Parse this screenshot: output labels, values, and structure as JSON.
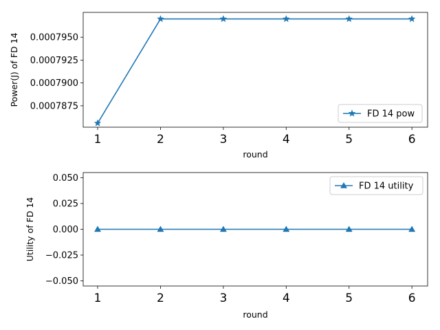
{
  "chart_data": [
    {
      "type": "line",
      "title": "",
      "xlabel": "round",
      "ylabel": "Power(J) of FD 14",
      "x": [
        1,
        2,
        3,
        4,
        5,
        6
      ],
      "xticks": [
        "1",
        "2",
        "3",
        "4",
        "5",
        "6"
      ],
      "xlim": [
        0.77,
        6.25
      ],
      "ylim": [
        0.00078516,
        0.00079772
      ],
      "yticks": [
        0.0007875,
        0.00079,
        0.0007925,
        0.000795
      ],
      "ytick_labels": [
        "0.0007875",
        "0.0007900",
        "0.0007925",
        "0.0007950"
      ],
      "series": [
        {
          "name": "FD 14 pow",
          "marker": "star",
          "color": "#1f77b4",
          "values": [
            0.0007856,
            0.000797,
            0.000797,
            0.000797,
            0.000797,
            0.000797
          ]
        }
      ],
      "legend": "lower-right",
      "grid": false
    },
    {
      "type": "line",
      "title": "",
      "xlabel": "round",
      "ylabel": "Utility of FD 14",
      "x": [
        1,
        2,
        3,
        4,
        5,
        6
      ],
      "xticks": [
        "1",
        "2",
        "3",
        "4",
        "5",
        "6"
      ],
      "xlim": [
        0.77,
        6.25
      ],
      "ylim": [
        -0.055,
        0.055
      ],
      "yticks": [
        -0.05,
        -0.025,
        0.0,
        0.025,
        0.05
      ],
      "ytick_labels": [
        "−0.050",
        "−0.025",
        "0.000",
        "0.025",
        "0.050"
      ],
      "series": [
        {
          "name": "FD 14 utility",
          "marker": "triangle",
          "color": "#1f77b4",
          "values": [
            0,
            0,
            0,
            0,
            0,
            0
          ]
        }
      ],
      "legend": "upper-right",
      "grid": false
    }
  ]
}
